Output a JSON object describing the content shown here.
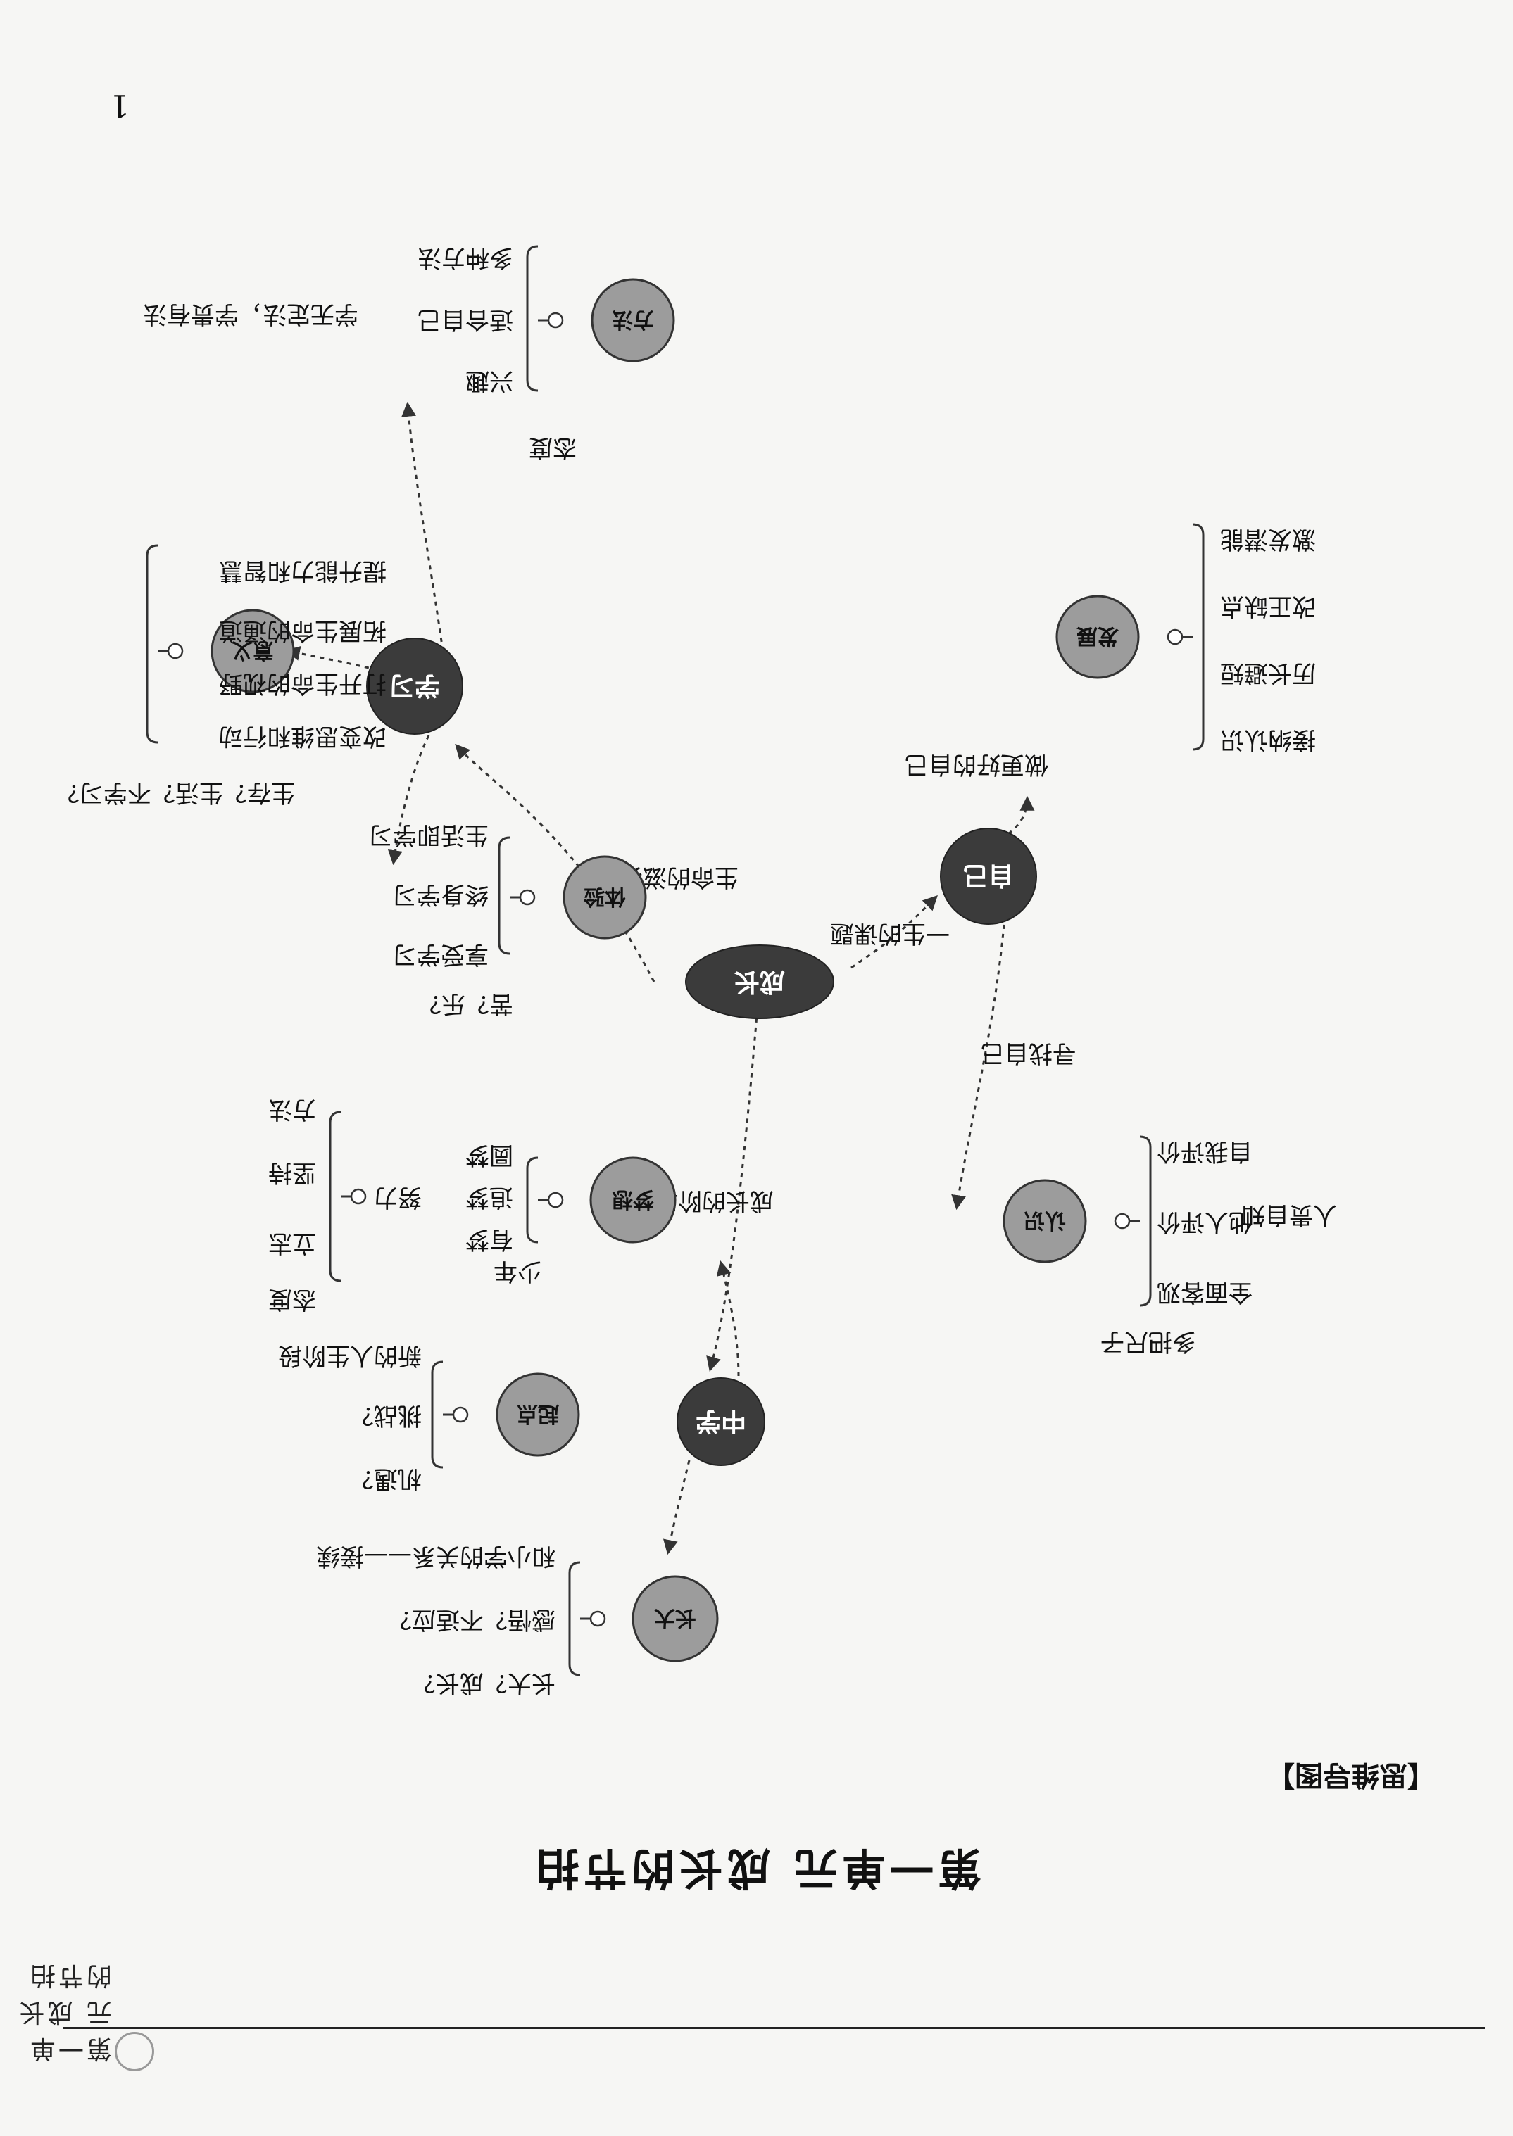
{
  "header": {
    "text": "第一单元 成长的节拍"
  },
  "unit_title": "第一单元 成长的节拍",
  "section_label": "【思维导图】",
  "page_number": "1",
  "mindmap": {
    "center": "成长",
    "nodes": [
      {
        "id": "zhongxue",
        "label": "中学",
        "kind": "dark"
      },
      {
        "id": "xuexi",
        "label": "学习",
        "kind": "dark"
      },
      {
        "id": "ziji",
        "label": "自己",
        "kind": "dark"
      },
      {
        "id": "zhangda",
        "label": "长大",
        "kind": "cloud"
      },
      {
        "id": "qidian",
        "label": "起点",
        "kind": "cloud"
      },
      {
        "id": "mengxiang",
        "label": "梦想",
        "kind": "cloud"
      },
      {
        "id": "tiyan",
        "label": "体验",
        "kind": "cloud"
      },
      {
        "id": "yiyi",
        "label": "意义",
        "kind": "cloud"
      },
      {
        "id": "fangfa",
        "label": "方法",
        "kind": "cloud"
      },
      {
        "id": "renshi",
        "label": "认识",
        "kind": "cloud"
      },
      {
        "id": "fazhan",
        "label": "发展",
        "kind": "cloud"
      }
    ],
    "edge_labels": {
      "center_zhongxue": "成长的阶段",
      "center_xuexi": "生命的滋养",
      "center_ziji": "一生的课题",
      "ziji_renshi": "寻找自己",
      "ziji_fazhan": "做更好的自己"
    },
    "branches": {
      "zhangda_items": [
        "长大？成长？",
        "感悟？不适应？",
        "和小学的关系——接续"
      ],
      "qidian_items": [
        "机遇？",
        "挑战？",
        "新的人生阶段"
      ],
      "qidian_pre": "",
      "mengxiang_pre": "少年",
      "mengxiang_items": [
        "有梦",
        "追梦",
        "圆梦"
      ],
      "nuli_label": "努力",
      "nuli_items": [
        "态度",
        "立志",
        "坚持",
        "方法"
      ],
      "tiyan_pre": "苦？乐？",
      "tiyan_items": [
        "享受学习",
        "终身学习",
        "生活即学习"
      ],
      "yiyi_pre": "生存？生活？不学习？",
      "yiyi_items": [
        "改变思维和行动",
        "打开生命的视野",
        "拓展生命的通道",
        "提升能力和智慧"
      ],
      "fangfa_pre": "态度",
      "fangfa_items": [
        "兴趣",
        "适合自己",
        "多种方法"
      ],
      "fangfa_note": "学无定法，学贵有法",
      "renshi_pre": "多把尺子",
      "renshi_items": [
        "全面客观",
        "他人评价",
        "自我评价"
      ],
      "renshi_note": "人贵自知",
      "fazhan_items": [
        "接纳认识",
        "历长避短",
        "改正缺点",
        "激发潜能"
      ]
    }
  }
}
